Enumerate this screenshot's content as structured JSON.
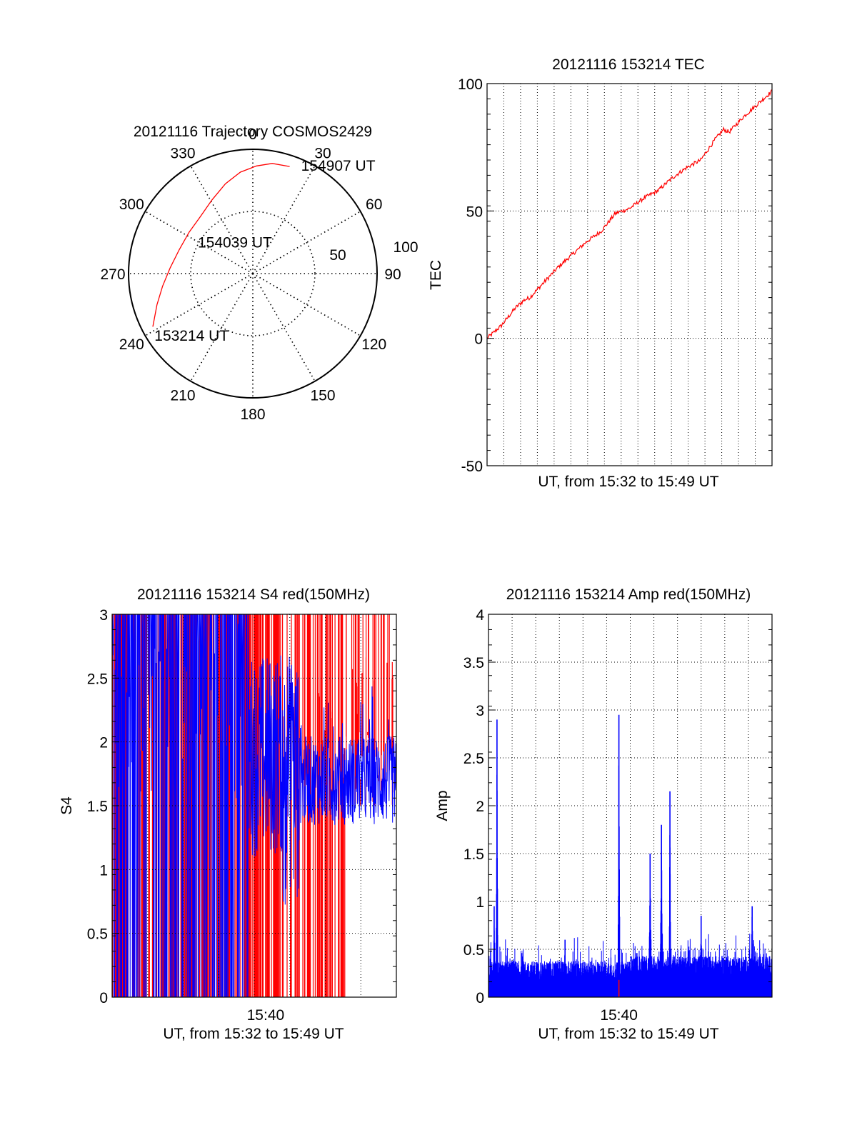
{
  "colors": {
    "red": "#ff0000",
    "blue": "#0000ff",
    "axis": "#000000",
    "grid": "#000000",
    "background": "#ffffff"
  },
  "chart_data": [
    {
      "id": "trajectory",
      "type": "scatter",
      "projection": "polar",
      "title": "20121116 Trajectory COSMOS2429",
      "angle_labels": [
        "0",
        "30",
        "60",
        "90",
        "120",
        "150",
        "180",
        "210",
        "240",
        "270",
        "300",
        "330"
      ],
      "radius_labels": [
        "50",
        "100"
      ],
      "elevation_circles": [
        0,
        50
      ],
      "grid": true,
      "series": [
        {
          "color": "red",
          "points": [
            {
              "azimuth_deg": 242,
              "elevation_deg": 8
            },
            {
              "azimuth_deg": 252,
              "elevation_deg": 17
            },
            {
              "azimuth_deg": 262,
              "elevation_deg": 24
            },
            {
              "azimuth_deg": 274,
              "elevation_deg": 30
            },
            {
              "azimuth_deg": 288,
              "elevation_deg": 34
            },
            {
              "azimuth_deg": 303,
              "elevation_deg": 35
            },
            {
              "azimuth_deg": 317,
              "elevation_deg": 34
            },
            {
              "azimuth_deg": 331,
              "elevation_deg": 29
            },
            {
              "azimuth_deg": 343,
              "elevation_deg": 22
            },
            {
              "azimuth_deg": 353,
              "elevation_deg": 16
            },
            {
              "azimuth_deg": 2,
              "elevation_deg": 12
            },
            {
              "azimuth_deg": 10,
              "elevation_deg": 9
            },
            {
              "azimuth_deg": 19,
              "elevation_deg": 8
            }
          ]
        }
      ],
      "annotations": [
        {
          "text": "153214 UT",
          "azimuth_deg": 238,
          "elevation_deg": 6
        },
        {
          "text": "154039 UT",
          "azimuth_deg": 300,
          "elevation_deg": 44
        },
        {
          "text": "154907 UT",
          "azimuth_deg": 24,
          "elevation_deg": 4
        }
      ]
    },
    {
      "id": "tec",
      "type": "line",
      "title": "20121116 153214 TEC",
      "xlabel": "UT, from 15:32 to 15:49 UT",
      "ylabel": "TEC",
      "ylim": [
        -50,
        100
      ],
      "yticks": [
        "-50",
        "0",
        "50",
        "100"
      ],
      "xlim": [
        0,
        1
      ],
      "grid": true,
      "series": [
        {
          "color": "red",
          "x": [
            0,
            0.05,
            0.1,
            0.13,
            0.15,
            0.2,
            0.25,
            0.3,
            0.35,
            0.4,
            0.45,
            0.5,
            0.55,
            0.6,
            0.65,
            0.7,
            0.75,
            0.8,
            0.83,
            0.85,
            0.9,
            0.95,
            1.0
          ],
          "y": [
            0,
            5,
            12,
            15,
            16,
            22,
            28,
            33,
            38,
            42,
            49,
            51,
            55,
            58,
            63,
            67,
            70,
            78,
            82,
            81,
            87,
            92,
            97
          ]
        }
      ]
    },
    {
      "id": "s4",
      "type": "line",
      "title": "20121116 153214 S4 red(150MHz)",
      "xlabel": "UT, from 15:32 to 15:49 UT",
      "ylabel": "S4",
      "ylim": [
        0,
        3
      ],
      "yticks": [
        "0",
        "0.5",
        "1",
        "1.5",
        "2",
        "2.5",
        "3"
      ],
      "xlim": [
        0,
        1
      ],
      "xticks": [
        {
          "x": 0.54,
          "label": "15:40"
        }
      ],
      "grid": true,
      "series": [
        {
          "color": "red",
          "description_of_shape": "dense spikes 0–3 across first 60%, sparse spikes to 3 afterwards"
        },
        {
          "color": "blue",
          "description_of_shape": "dense spikes 0–3 in first 50%, then noisy band ~1.3–2.2"
        }
      ]
    },
    {
      "id": "amp",
      "type": "line",
      "title": "20121116 153214 Amp red(150MHz)",
      "xlabel": "UT, from 15:32 to 15:49 UT",
      "ylabel": "Amp",
      "ylim": [
        0,
        4
      ],
      "yticks": [
        "0",
        "0.5",
        "1",
        "1.5",
        "2",
        "2.5",
        "3",
        "3.5",
        "4"
      ],
      "xlim": [
        0,
        1
      ],
      "xticks": [
        {
          "x": 0.46,
          "label": "15:40"
        }
      ],
      "grid": true,
      "series": [
        {
          "color": "blue",
          "baseline": 0.3,
          "peaks": [
            {
              "x": 0.03,
              "y": 2.9
            },
            {
              "x": 0.46,
              "y": 2.95
            },
            {
              "x": 0.57,
              "y": 1.5
            },
            {
              "x": 0.61,
              "y": 1.8
            },
            {
              "x": 0.64,
              "y": 2.15
            },
            {
              "x": 0.02,
              "y": 0.95
            },
            {
              "x": 0.27,
              "y": 0.6
            },
            {
              "x": 0.75,
              "y": 0.85
            },
            {
              "x": 0.93,
              "y": 0.95
            }
          ]
        },
        {
          "color": "red",
          "peaks": [
            {
              "x": 0.46,
              "y": 0.18
            }
          ]
        }
      ]
    }
  ]
}
